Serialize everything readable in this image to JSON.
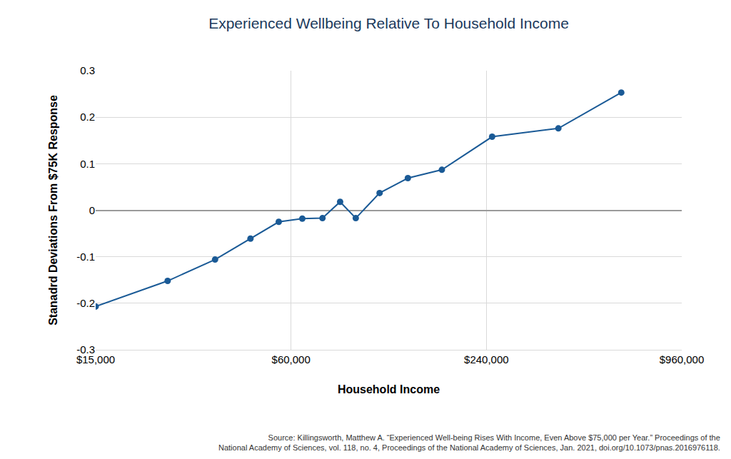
{
  "chart_data": {
    "type": "line",
    "title": "Experienced Wellbeing Relative To Household Income",
    "x_label": "Household Income",
    "y_label": "Stanadrd Deviations From $75K Response",
    "source": [
      "Source: Killingsworth, Matthew A. “Experienced Well-being Rises With Income, Even Above $75,000 per Year.” Proceedings of the",
      "National Academy of Sciences, vol. 118, no. 4, Proceedings of the National Academy of Sciences, Jan. 2021, doi.org/10.1073/pnas.2016976118."
    ],
    "x": [
      15000,
      25000,
      35000,
      45000,
      55000,
      65000,
      75000,
      85000,
      95000,
      112500,
      137500,
      175000,
      250000,
      400000,
      625000
    ],
    "values": [
      -0.207,
      -0.152,
      -0.106,
      -0.061,
      -0.025,
      -0.018,
      -0.017,
      0.018,
      -0.017,
      0.037,
      0.069,
      0.087,
      0.158,
      0.176,
      0.253
    ],
    "color": "#1a5a96",
    "marker": "circle",
    "line_style": "solid",
    "log": "x",
    "grid": true,
    "xlim": [
      15000,
      960000
    ],
    "xticks": [
      {
        "value": 15000,
        "label": "$15,000"
      },
      {
        "value": 60000,
        "label": "$60,000"
      },
      {
        "value": 240000,
        "label": "$240,000"
      },
      {
        "value": 960000,
        "label": "$960,000"
      }
    ],
    "ylim": [
      -0.3,
      0.3
    ],
    "yticks": [
      -0.3,
      -0.2,
      -0.1,
      0,
      0.1,
      0.2,
      0.3
    ]
  }
}
